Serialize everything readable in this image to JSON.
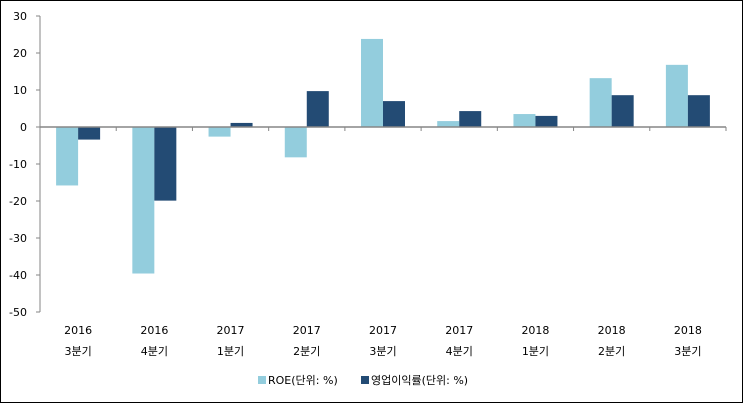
{
  "chart_data": {
    "type": "bar",
    "title": "",
    "xlabel": "",
    "ylabel": "",
    "ylim": [
      -50,
      30
    ],
    "yticks": [
      30,
      20,
      10,
      0,
      -10,
      -20,
      -30,
      -40,
      -50
    ],
    "grid": false,
    "legend_position": "bottom",
    "categories": [
      {
        "year": "2016",
        "quarter": "3분기"
      },
      {
        "year": "2016",
        "quarter": "4분기"
      },
      {
        "year": "2017",
        "quarter": "1분기"
      },
      {
        "year": "2017",
        "quarter": "2분기"
      },
      {
        "year": "2017",
        "quarter": "3분기"
      },
      {
        "year": "2017",
        "quarter": "4분기"
      },
      {
        "year": "2018",
        "quarter": "1분기"
      },
      {
        "year": "2018",
        "quarter": "2분기"
      },
      {
        "year": "2018",
        "quarter": "3분기"
      }
    ],
    "series": [
      {
        "name": "ROE(단위: %)",
        "color": "#93cddd",
        "values": [
          -15.8,
          -39.6,
          -2.6,
          -8.2,
          23.8,
          1.6,
          3.5,
          13.2,
          16.8
        ]
      },
      {
        "name": "영업이익률(단위: %)",
        "color": "#234b74",
        "values": [
          -3.4,
          -19.9,
          1.1,
          9.7,
          7.0,
          4.3,
          3.0,
          8.6,
          8.6
        ]
      }
    ]
  }
}
